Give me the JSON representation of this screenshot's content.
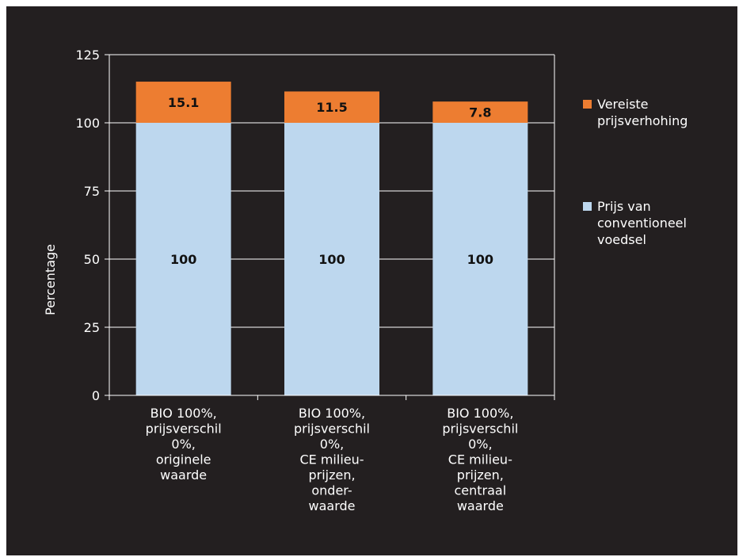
{
  "chart_data": {
    "type": "bar",
    "stacked": true,
    "categories": [
      [
        "BIO 100%,",
        "prijsverschil",
        "0%,",
        "originele",
        "waarde"
      ],
      [
        "BIO 100%,",
        "prijsverschil",
        "0%,",
        "CE milieu-",
        "prijzen,",
        "onder-",
        "waarde"
      ],
      [
        "BIO 100%,",
        "prijsverschil",
        "0%,",
        "CE milieu-",
        "prijzen,",
        "centraal",
        "waarde"
      ]
    ],
    "series": [
      {
        "name": [
          "Prijs van",
          "conventioneel",
          "voedsel"
        ],
        "values": [
          100,
          100,
          100
        ],
        "labels": [
          "100",
          "100",
          "100"
        ],
        "color": "#bdd7ee"
      },
      {
        "name": [
          "Vereiste",
          "prijsverhohing"
        ],
        "values": [
          15.1,
          11.5,
          7.8
        ],
        "labels": [
          "15.1",
          "11.5",
          "7.8"
        ],
        "color": "#ed7d31"
      }
    ],
    "ylabel": "Percentage",
    "ylim": [
      0,
      125
    ],
    "yticks": [
      0,
      25,
      50,
      75,
      100,
      125
    ],
    "grid": true,
    "legend_position": "right",
    "background": "#231f20",
    "axis_color": "#ffffff",
    "grid_color": "#ffffff"
  }
}
